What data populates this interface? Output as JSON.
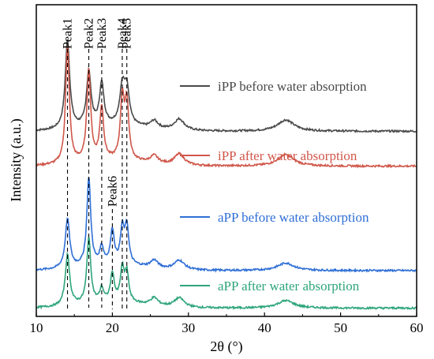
{
  "chart_data": {
    "type": "line",
    "xlabel": "2θ (°)",
    "ylabel": "Intensity (a.u.)",
    "xlim": [
      10,
      60
    ],
    "xticks": [
      "10",
      "20",
      "30",
      "40",
      "50",
      "60"
    ],
    "yticks_shown": false,
    "grid": false,
    "legend_placement": "inline, right of each curve",
    "series": [
      {
        "name": "iPP before water absorption",
        "color": "#4a4a4a",
        "baseline": 0.93,
        "peaks": [
          [
            14.1,
            2.35,
            0.35
          ],
          [
            16.9,
            1.45,
            0.35
          ],
          [
            18.6,
            1.1,
            0.35
          ],
          [
            21.3,
            0.95,
            0.4
          ],
          [
            21.9,
            0.95,
            0.4
          ],
          [
            25.5,
            0.2,
            0.6
          ],
          [
            28.8,
            0.3,
            0.8
          ],
          [
            42.8,
            0.3,
            1.3
          ]
        ]
      },
      {
        "name": "iPP after water absorption",
        "color": "#d0574a",
        "baseline": 0.0,
        "peaks": [
          [
            14.1,
            3.1,
            0.3
          ],
          [
            16.9,
            2.4,
            0.3
          ],
          [
            18.6,
            1.4,
            0.3
          ],
          [
            21.3,
            1.6,
            0.3
          ],
          [
            21.9,
            1.5,
            0.3
          ],
          [
            25.5,
            0.2,
            0.6
          ],
          [
            28.8,
            0.3,
            0.8
          ],
          [
            42.8,
            0.3,
            1.3
          ]
        ]
      },
      {
        "name": "aPP before water absorption",
        "color": "#2f6fd6",
        "baseline": -2.78,
        "peaks": [
          [
            14.1,
            1.3,
            0.35
          ],
          [
            16.9,
            2.35,
            0.3
          ],
          [
            18.6,
            0.45,
            0.3
          ],
          [
            20.0,
            0.9,
            0.3
          ],
          [
            21.3,
            0.9,
            0.3
          ],
          [
            21.9,
            1.0,
            0.3
          ],
          [
            25.5,
            0.2,
            0.6
          ],
          [
            28.8,
            0.25,
            0.8
          ],
          [
            42.8,
            0.2,
            1.3
          ]
        ]
      },
      {
        "name": "aPP after water absorption",
        "color": "#2ea57a",
        "baseline": -3.78,
        "peaks": [
          [
            14.1,
            1.35,
            0.35
          ],
          [
            16.9,
            1.75,
            0.3
          ],
          [
            18.6,
            0.35,
            0.3
          ],
          [
            20.0,
            0.75,
            0.3
          ],
          [
            21.3,
            0.85,
            0.3
          ],
          [
            21.9,
            0.75,
            0.3
          ],
          [
            25.5,
            0.2,
            0.6
          ],
          [
            28.8,
            0.25,
            0.8
          ],
          [
            42.8,
            0.2,
            1.3
          ]
        ]
      }
    ],
    "annotations": {
      "peak_lines": [
        {
          "label": "Peak1",
          "x": 14.1
        },
        {
          "label": "Peak2",
          "x": 16.9
        },
        {
          "label": "Peak3",
          "x": 18.6
        },
        {
          "label": "Peak4",
          "x": 21.3
        },
        {
          "label": "Peak5",
          "x": 21.9
        },
        {
          "label": "Peak6",
          "x": 20.0
        }
      ]
    }
  }
}
